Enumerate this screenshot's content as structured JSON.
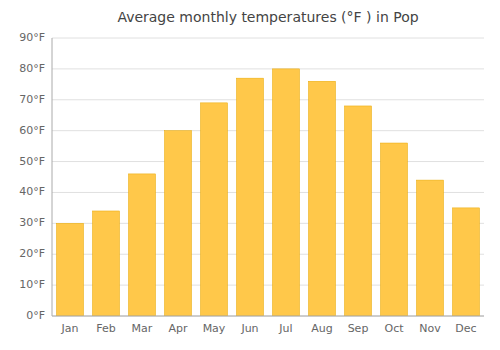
{
  "chart_data": {
    "type": "bar",
    "title": "Average monthly temperatures (°F ) in Pop",
    "categories": [
      "Jan",
      "Feb",
      "Mar",
      "Apr",
      "May",
      "Jun",
      "Jul",
      "Aug",
      "Sep",
      "Oct",
      "Nov",
      "Dec"
    ],
    "values": [
      30,
      34,
      46,
      60,
      69,
      77,
      80,
      76,
      68,
      56,
      44,
      35
    ],
    "color": "#FFC84A",
    "ylim": [
      0,
      90
    ],
    "yticks": [
      {
        "value": 0,
        "label": "0°F"
      },
      {
        "value": 10,
        "label": "10°F"
      },
      {
        "value": 20,
        "label": "20°F"
      },
      {
        "value": 30,
        "label": "30°F"
      },
      {
        "value": 40,
        "label": "40°F"
      },
      {
        "value": 50,
        "label": "50°F"
      },
      {
        "value": 60,
        "label": "60°F"
      },
      {
        "value": 70,
        "label": "70°F"
      },
      {
        "value": 80,
        "label": "80°F"
      },
      {
        "value": 90,
        "label": "90°F"
      }
    ],
    "grid": true
  }
}
